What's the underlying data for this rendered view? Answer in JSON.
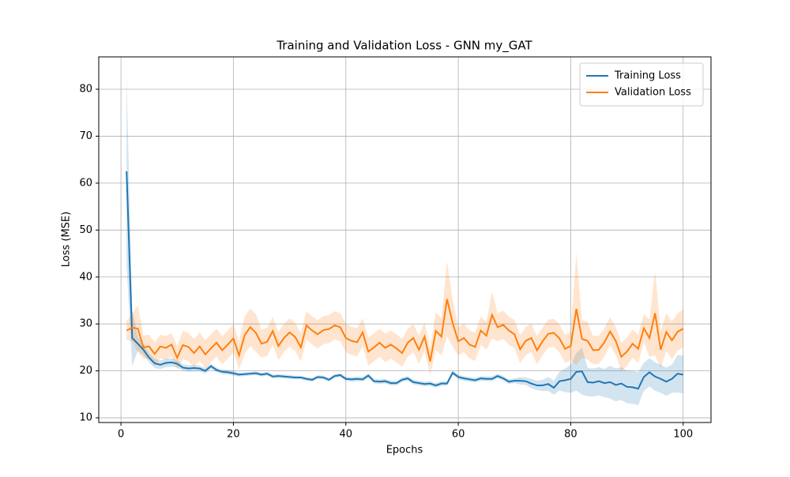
{
  "chart_data": {
    "type": "line",
    "title": "Training and Validation Loss - GNN my_GAT",
    "xlabel": "Epochs",
    "ylabel": "Loss (MSE)",
    "x": [
      1,
      2,
      3,
      4,
      5,
      6,
      7,
      8,
      9,
      10,
      11,
      12,
      13,
      14,
      15,
      16,
      17,
      18,
      19,
      20,
      21,
      22,
      23,
      24,
      25,
      26,
      27,
      28,
      29,
      30,
      31,
      32,
      33,
      34,
      35,
      36,
      37,
      38,
      39,
      40,
      41,
      42,
      43,
      44,
      45,
      46,
      47,
      48,
      49,
      50,
      51,
      52,
      53,
      54,
      55,
      56,
      57,
      58,
      59,
      60,
      61,
      62,
      63,
      64,
      65,
      66,
      67,
      68,
      69,
      70,
      71,
      72,
      73,
      74,
      75,
      76,
      77,
      78,
      79,
      80,
      81,
      82,
      83,
      84,
      85,
      86,
      87,
      88,
      89,
      90,
      91,
      92,
      93,
      94,
      95,
      96,
      97,
      98,
      99,
      100
    ],
    "series": [
      {
        "name": "Training Loss",
        "color": "#1f77b4",
        "values": [
          62.5,
          27,
          25.8,
          24.5,
          22.8,
          21.6,
          21.3,
          21.7,
          21.8,
          21.5,
          20.7,
          20.5,
          20.6,
          20.5,
          20.0,
          21.0,
          20.2,
          19.8,
          19.7,
          19.5,
          19.2,
          19.3,
          19.4,
          19.5,
          19.2,
          19.4,
          18.8,
          18.9,
          18.8,
          18.7,
          18.6,
          18.6,
          18.3,
          18.1,
          18.7,
          18.6,
          18.1,
          18.9,
          19.1,
          18.3,
          18.2,
          18.3,
          18.2,
          19.0,
          17.8,
          17.7,
          17.8,
          17.4,
          17.4,
          18.1,
          18.4,
          17.6,
          17.4,
          17.2,
          17.3,
          16.9,
          17.3,
          17.3,
          19.6,
          18.7,
          18.4,
          18.2,
          18.0,
          18.4,
          18.3,
          18.3,
          18.9,
          18.4,
          17.7,
          17.9,
          17.9,
          17.8,
          17.3,
          16.9,
          16.9,
          17.2,
          16.4,
          17.8,
          18.0,
          18.3,
          19.8,
          19.9,
          17.6,
          17.5,
          17.8,
          17.4,
          17.6,
          17.0,
          17.3,
          16.6,
          16.5,
          16.2,
          18.7,
          19.7,
          18.8,
          18.3,
          17.7,
          18.3,
          19.4,
          19.2
        ],
        "std": [
          20,
          6,
          1.5,
          1.2,
          1,
          1,
          0.9,
          0.9,
          0.9,
          0.8,
          0.7,
          0.7,
          0.7,
          0.6,
          0.6,
          0.6,
          0.5,
          0.5,
          0.5,
          0.5,
          0.4,
          0.4,
          0.4,
          0.4,
          0.4,
          0.4,
          0.4,
          0.4,
          0.4,
          0.4,
          0.4,
          0.4,
          0.4,
          0.4,
          0.4,
          0.4,
          0.4,
          0.4,
          0.4,
          0.4,
          0.5,
          0.5,
          0.5,
          0.5,
          0.5,
          0.5,
          0.5,
          0.5,
          0.5,
          0.5,
          0.5,
          0.5,
          0.5,
          0.5,
          0.5,
          0.5,
          0.5,
          0.5,
          0.5,
          0.5,
          0.5,
          0.5,
          0.5,
          0.5,
          0.5,
          0.5,
          0.5,
          0.5,
          0.5,
          0.5,
          0.8,
          0.8,
          1,
          1,
          1.2,
          1.5,
          1.5,
          2,
          2.5,
          3,
          4,
          5,
          3,
          3,
          3,
          3,
          3.5,
          3.5,
          3.5,
          3.5,
          3.5,
          3.5,
          3,
          3,
          3,
          3,
          3,
          3,
          4,
          4
        ]
      },
      {
        "name": "Validation Loss",
        "color": "#ff7f0e",
        "values": [
          28.6,
          29.2,
          29.0,
          25.0,
          25.2,
          23.6,
          25.2,
          24.9,
          25.6,
          22.8,
          25.5,
          25.1,
          23.8,
          25.2,
          23.5,
          24.8,
          26.0,
          24.4,
          25.6,
          26.9,
          23.3,
          27.6,
          29.3,
          28.1,
          25.8,
          26.2,
          28.5,
          25.3,
          27.0,
          28.2,
          27.2,
          25.0,
          29.7,
          28.6,
          27.8,
          28.7,
          28.9,
          29.7,
          29.3,
          27.0,
          26.4,
          26.1,
          28.2,
          24.1,
          25.0,
          26.0,
          24.9,
          25.6,
          24.8,
          23.8,
          26.0,
          27.0,
          24.5,
          27.3,
          22.0,
          28.5,
          27.3,
          35.3,
          30.2,
          26.3,
          27.0,
          25.6,
          25.1,
          28.6,
          27.5,
          31.9,
          29.3,
          29.8,
          28.6,
          27.8,
          24.6,
          26.4,
          27.0,
          24.4,
          26.3,
          27.9,
          28.1,
          26.9,
          24.7,
          25.3,
          33.2,
          26.8,
          26.4,
          24.4,
          24.5,
          26.1,
          28.4,
          26.4,
          23.0,
          24.1,
          25.8,
          24.7,
          29.1,
          27.0,
          32.3,
          24.5,
          28.3,
          26.5,
          28.3,
          29.0
        ],
        "std": [
          2,
          3,
          5,
          2.5,
          2.5,
          2.5,
          2.5,
          2.5,
          2.5,
          2.5,
          3,
          3,
          3,
          3,
          3,
          3,
          3,
          3,
          3,
          3,
          3,
          4,
          4,
          4,
          3,
          3,
          3,
          3,
          3,
          3,
          3,
          3,
          3,
          3,
          3,
          3,
          3,
          3,
          3,
          3,
          3,
          3,
          3,
          3,
          3,
          3,
          3,
          3,
          3,
          3,
          3,
          3,
          3,
          3,
          3,
          4,
          4,
          8,
          5,
          3,
          3,
          3,
          3,
          3,
          3,
          5,
          3,
          3,
          3,
          3,
          3,
          3,
          3,
          3,
          3,
          3,
          3,
          3,
          3,
          3,
          12,
          4,
          4,
          3,
          3,
          3,
          3,
          3,
          3,
          3,
          3,
          3,
          3,
          4,
          9,
          4,
          4,
          4,
          4,
          4
        ]
      }
    ],
    "xlim": [
      -3.95,
      104.95
    ],
    "xticks": [
      0,
      20,
      40,
      60,
      80,
      100
    ],
    "ylim": [
      9.0,
      86.9
    ],
    "yticks": [
      10,
      20,
      30,
      40,
      50,
      60,
      70,
      80
    ],
    "grid": true,
    "legend": "upper right"
  }
}
